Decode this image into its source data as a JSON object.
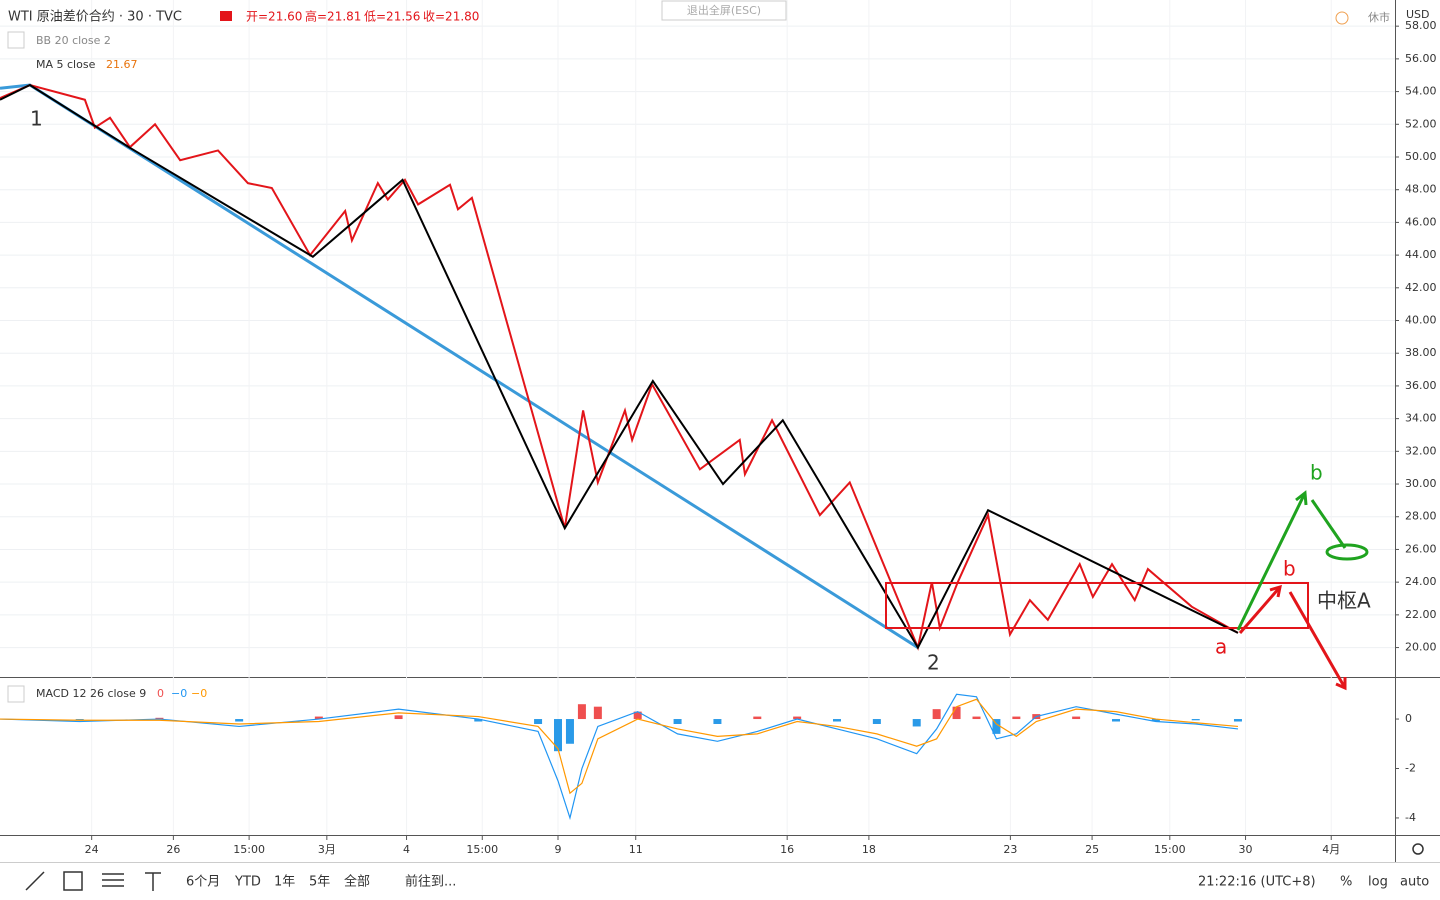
{
  "header": {
    "symbol": "WTI 原油差价合约 · 30 · TVC",
    "open": "开=21.60",
    "high": "高=21.81",
    "low": "低=21.56",
    "close": "收=21.80",
    "bb": "BB 20 close 2",
    "ma": "MA 5 close",
    "ma_value": "21.67",
    "exit": "退出全屏(ESC)",
    "status": "休市",
    "currency": "USD"
  },
  "annotations": {
    "wave1": "1",
    "wave2": "2",
    "a": "a",
    "b_red": "b",
    "b_green": "b",
    "zone": "中枢A"
  },
  "chart_data": [
    {
      "type": "line",
      "xlim": [
        0,
        35
      ],
      "ylim": [
        18.2,
        59.6
      ],
      "grid": true,
      "xticks": [
        {
          "value": 2.3,
          "label": "24"
        },
        {
          "value": 4.35,
          "label": "26"
        },
        {
          "value": 6.25,
          "label": "15:00"
        },
        {
          "value": 8.2,
          "label": "3月"
        },
        {
          "value": 10.2,
          "label": "4"
        },
        {
          "value": 12.1,
          "label": "15:00"
        },
        {
          "value": 14.0,
          "label": "9"
        },
        {
          "value": 15.95,
          "label": "11"
        },
        {
          "value": 19.75,
          "label": "16"
        },
        {
          "value": 21.8,
          "label": "18"
        },
        {
          "value": 25.35,
          "label": "23"
        },
        {
          "value": 27.4,
          "label": "25"
        },
        {
          "value": 29.35,
          "label": "15:00"
        },
        {
          "value": 31.25,
          "label": "30"
        },
        {
          "value": 33.4,
          "label": "4月"
        }
      ],
      "yticks": [
        {
          "value": 20,
          "label": "20.00"
        },
        {
          "value": 22,
          "label": "22.00"
        },
        {
          "value": 24,
          "label": "24.00"
        },
        {
          "value": 26,
          "label": "26.00"
        },
        {
          "value": 28,
          "label": "28.00"
        },
        {
          "value": 30,
          "label": "30.00"
        },
        {
          "value": 32,
          "label": "32.00"
        },
        {
          "value": 34,
          "label": "34.00"
        },
        {
          "value": 36,
          "label": "36.00"
        },
        {
          "value": 38,
          "label": "38.00"
        },
        {
          "value": 40,
          "label": "40.00"
        },
        {
          "value": 42,
          "label": "42.00"
        },
        {
          "value": 44,
          "label": "44.00"
        },
        {
          "value": 46,
          "label": "46.00"
        },
        {
          "value": 48,
          "label": "48.00"
        },
        {
          "value": 50,
          "label": "50.00"
        },
        {
          "value": 52,
          "label": "52.00"
        },
        {
          "value": 54,
          "label": "54.00"
        },
        {
          "value": 56,
          "label": "56.00"
        },
        {
          "value": 58,
          "label": "58.00"
        }
      ],
      "series": [
        {
          "color": "#3a9ad9",
          "width": 3,
          "x": [
            0,
            0.75,
            23.03
          ],
          "values": [
            54.2,
            54.4,
            20.0
          ]
        },
        {
          "color": "#e3151a",
          "width": 2,
          "x": [
            0,
            0.75,
            2.13,
            2.38,
            2.76,
            3.26,
            3.89,
            4.52,
            5.47,
            6.22,
            6.82,
            7.78,
            8.66,
            8.83,
            9.48,
            9.73,
            10.16,
            10.49,
            11.29,
            11.49,
            11.84,
            14.17,
            14.63,
            15.0,
            15.68,
            15.86,
            16.36,
            17.56,
            18.56,
            18.69,
            19.37,
            20.57,
            21.32,
            23.03,
            23.38,
            23.58,
            24.03,
            24.79,
            25.34,
            25.84,
            26.29,
            27.09,
            27.42,
            27.9,
            28.47,
            28.8,
            29.9,
            31.06
          ],
          "values": [
            53.6,
            54.4,
            53.5,
            51.8,
            52.4,
            50.6,
            52.0,
            49.8,
            50.4,
            48.4,
            48.1,
            44.0,
            46.7,
            44.9,
            48.4,
            47.4,
            48.6,
            47.1,
            48.3,
            46.8,
            47.5,
            27.3,
            34.5,
            30.1,
            34.5,
            32.7,
            36.1,
            30.9,
            32.7,
            30.6,
            33.9,
            28.1,
            30.1,
            20.0,
            24.0,
            21.2,
            24.0,
            28.1,
            20.8,
            22.9,
            21.7,
            25.1,
            23.1,
            25.1,
            22.9,
            24.8,
            22.5,
            20.9
          ]
        },
        {
          "color": "#000000",
          "width": 2,
          "x": [
            0,
            0.75,
            3.26,
            7.85,
            10.1,
            14.17,
            16.38,
            18.14,
            19.64,
            23.03,
            24.79,
            31.06
          ],
          "values": [
            53.5,
            54.4,
            50.56,
            43.9,
            48.6,
            27.3,
            36.3,
            30.0,
            33.9,
            20.0,
            28.4,
            20.9
          ]
        }
      ]
    },
    {
      "type": "macd",
      "title": "MACD 12 26 close 9",
      "legend": [
        "0",
        "−0",
        "−0"
      ],
      "xlim": [
        0,
        35
      ],
      "ylim": [
        -4.69,
        1.66
      ],
      "yticks": [
        0,
        -2,
        -4
      ],
      "pos_color": "#ef4f4f",
      "neg_color": "#2a9ae8",
      "x": [
        0,
        2,
        4,
        6,
        8,
        10,
        12,
        13.5,
        14.0,
        14.3,
        14.6,
        15,
        16,
        17,
        18,
        19,
        20,
        21,
        22,
        23,
        23.5,
        24,
        24.5,
        25,
        25.5,
        26,
        27,
        28,
        29,
        30,
        31.06
      ],
      "series": [
        {
          "color": "#2196f3",
          "values": [
            0,
            -0.1,
            0,
            -0.3,
            0,
            0.4,
            0,
            -0.5,
            -2.5,
            -4,
            -2,
            -0.3,
            0.3,
            -0.6,
            -0.9,
            -0.5,
            0,
            -0.4,
            -0.8,
            -1.4,
            -0.4,
            1,
            0.9,
            -0.8,
            -0.6,
            0.1,
            0.5,
            0.2,
            -0.1,
            -0.2,
            -0.4
          ]
        },
        {
          "color": "#ff9800",
          "values": [
            0,
            -0.05,
            -0.05,
            -0.2,
            -0.1,
            0.25,
            0.1,
            -0.3,
            -1.2,
            -3,
            -2.6,
            -0.8,
            0,
            -0.4,
            -0.7,
            -0.6,
            -0.1,
            -0.3,
            -0.6,
            -1.1,
            -0.8,
            0.5,
            0.8,
            -0.2,
            -0.7,
            -0.1,
            0.4,
            0.3,
            0,
            -0.15,
            -0.3
          ]
        }
      ],
      "histogram": [
        0,
        -0.05,
        0.05,
        -0.1,
        0.1,
        0.15,
        -0.1,
        -0.2,
        -1.3,
        -1,
        0.6,
        0.5,
        0.3,
        -0.2,
        -0.2,
        0.1,
        0.1,
        -0.1,
        -0.2,
        -0.3,
        0.4,
        0.5,
        0.1,
        -0.6,
        0.1,
        0.2,
        0.1,
        -0.1,
        -0.1,
        -0.05,
        -0.1
      ]
    }
  ],
  "toolbar": {
    "ranges": [
      "6个月",
      "YTD",
      "1年",
      "5年",
      "全部"
    ],
    "goto": "前往到...",
    "time": "21:22:16 (UTC+8)",
    "percent": "%",
    "log": "log",
    "auto": "auto"
  }
}
